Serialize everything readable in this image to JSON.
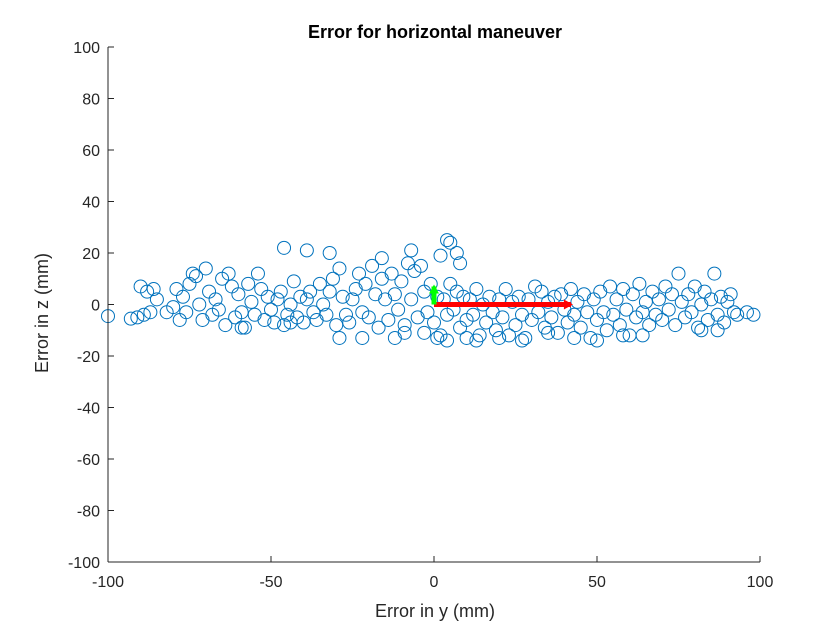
{
  "chart_data": {
    "type": "scatter",
    "title": "Error for horizontal maneuver",
    "xlabel": "Error in y (mm)",
    "ylabel": "Error in z (mm)",
    "xlim": [
      -100,
      100
    ],
    "ylim": [
      -100,
      100
    ],
    "xticks": [
      "-100",
      "-50",
      "0",
      "50",
      "100"
    ],
    "yticks": [
      "100",
      "80",
      "60",
      "40",
      "20",
      "0",
      "-20",
      "-40",
      "-60",
      "-80",
      "-100"
    ],
    "grid": false,
    "colors": {
      "markers": "#0072BD",
      "x_arrow": "#FF0000",
      "z_arrow": "#00FF00",
      "axis": "#262626"
    },
    "series": [
      {
        "marker": "circle-open",
        "points": [
          [
            -100,
            -4.5
          ],
          [
            -93,
            -5.5
          ],
          [
            -91,
            -5
          ],
          [
            -90,
            7
          ],
          [
            -89,
            -4
          ],
          [
            -88,
            5
          ],
          [
            -87,
            -3
          ],
          [
            -86,
            6
          ],
          [
            -85,
            2
          ],
          [
            -82,
            -3
          ],
          [
            -80,
            -1
          ],
          [
            -79,
            6
          ],
          [
            -78,
            -6
          ],
          [
            -77,
            3
          ],
          [
            -76,
            -3
          ],
          [
            -75,
            8
          ],
          [
            -74,
            12
          ],
          [
            -73,
            11
          ],
          [
            -72,
            0
          ],
          [
            -71,
            -6
          ],
          [
            -70,
            14
          ],
          [
            -69,
            5
          ],
          [
            -68,
            -4
          ],
          [
            -67,
            2
          ],
          [
            -66,
            -2
          ],
          [
            -65,
            10
          ],
          [
            -64,
            -8
          ],
          [
            -63,
            12
          ],
          [
            -62,
            7
          ],
          [
            -61,
            -5
          ],
          [
            -60,
            4
          ],
          [
            -59,
            -3
          ],
          [
            -58,
            -9
          ],
          [
            -57,
            8
          ],
          [
            -56,
            1
          ],
          [
            -55,
            -4
          ],
          [
            -54,
            12
          ],
          [
            -53,
            6
          ],
          [
            -52,
            -6
          ],
          [
            -51,
            3
          ],
          [
            -50,
            -2
          ],
          [
            -49,
            -7
          ],
          [
            -48,
            2
          ],
          [
            -47,
            5
          ],
          [
            -46,
            -8
          ],
          [
            -45,
            -4
          ],
          [
            -44,
            0
          ],
          [
            -43,
            9
          ],
          [
            -42,
            -5
          ],
          [
            -41,
            3
          ],
          [
            -40,
            -7
          ],
          [
            -39,
            2
          ],
          [
            -38,
            5
          ],
          [
            -37,
            -3
          ],
          [
            -36,
            -6
          ],
          [
            -35,
            8
          ],
          [
            -34,
            0
          ],
          [
            -33,
            -4
          ],
          [
            -32,
            5
          ],
          [
            -31,
            10
          ],
          [
            -30,
            -8
          ],
          [
            -29,
            14
          ],
          [
            -28,
            3
          ],
          [
            -27,
            -4
          ],
          [
            -26,
            -7
          ],
          [
            -25,
            2
          ],
          [
            -24,
            6
          ],
          [
            -23,
            12
          ],
          [
            -22,
            -3
          ],
          [
            -21,
            8
          ],
          [
            -20,
            -5
          ],
          [
            -19,
            15
          ],
          [
            -18,
            4
          ],
          [
            -17,
            -9
          ],
          [
            -16,
            10
          ],
          [
            -15,
            2
          ],
          [
            -14,
            -6
          ],
          [
            -13,
            12
          ],
          [
            -12,
            4
          ],
          [
            -11,
            -2
          ],
          [
            -10,
            9
          ],
          [
            -9,
            -8
          ],
          [
            -8,
            16
          ],
          [
            -7,
            2
          ],
          [
            -6,
            13
          ],
          [
            -5,
            -5
          ],
          [
            -4,
            15
          ],
          [
            -3,
            5
          ],
          [
            -2,
            -3
          ],
          [
            -1,
            8
          ],
          [
            0,
            -7
          ],
          [
            1,
            3
          ],
          [
            2,
            -12
          ],
          [
            3,
            2
          ],
          [
            4,
            -4
          ],
          [
            5,
            8
          ],
          [
            6,
            -2
          ],
          [
            7,
            5
          ],
          [
            8,
            -9
          ],
          [
            9,
            3
          ],
          [
            10,
            -6
          ],
          [
            11,
            2
          ],
          [
            12,
            -4
          ],
          [
            13,
            6
          ],
          [
            14,
            -12
          ],
          [
            15,
            0
          ],
          [
            16,
            -7
          ],
          [
            17,
            3
          ],
          [
            18,
            -3
          ],
          [
            19,
            -10
          ],
          [
            20,
            2
          ],
          [
            21,
            -5
          ],
          [
            22,
            6
          ],
          [
            23,
            -12
          ],
          [
            24,
            1
          ],
          [
            25,
            -8
          ],
          [
            26,
            3
          ],
          [
            27,
            -4
          ],
          [
            28,
            -13
          ],
          [
            29,
            2
          ],
          [
            30,
            -6
          ],
          [
            31,
            7
          ],
          [
            32,
            -3
          ],
          [
            33,
            5
          ],
          [
            34,
            -9
          ],
          [
            35,
            1
          ],
          [
            36,
            -5
          ],
          [
            37,
            3
          ],
          [
            38,
            -11
          ],
          [
            39,
            4
          ],
          [
            40,
            -2
          ],
          [
            41,
            -7
          ],
          [
            42,
            6
          ],
          [
            43,
            -4
          ],
          [
            44,
            1
          ],
          [
            45,
            -9
          ],
          [
            46,
            4
          ],
          [
            47,
            -3
          ],
          [
            48,
            -13
          ],
          [
            49,
            2
          ],
          [
            50,
            -6
          ],
          [
            51,
            5
          ],
          [
            52,
            -3
          ],
          [
            53,
            -10
          ],
          [
            54,
            7
          ],
          [
            55,
            -4
          ],
          [
            56,
            2
          ],
          [
            57,
            -8
          ],
          [
            58,
            6
          ],
          [
            59,
            -2
          ],
          [
            60,
            -12
          ],
          [
            61,
            4
          ],
          [
            62,
            -5
          ],
          [
            63,
            8
          ],
          [
            64,
            -3
          ],
          [
            65,
            1
          ],
          [
            66,
            -8
          ],
          [
            67,
            5
          ],
          [
            68,
            -4
          ],
          [
            69,
            2
          ],
          [
            70,
            -6
          ],
          [
            71,
            7
          ],
          [
            72,
            -2
          ],
          [
            73,
            4
          ],
          [
            74,
            -8
          ],
          [
            75,
            12
          ],
          [
            76,
            1
          ],
          [
            77,
            -5
          ],
          [
            78,
            4
          ],
          [
            79,
            -3
          ],
          [
            80,
            7
          ],
          [
            81,
            -9
          ],
          [
            82,
            0
          ],
          [
            83,
            5
          ],
          [
            84,
            -6
          ],
          [
            85,
            2
          ],
          [
            86,
            12
          ],
          [
            87,
            -4
          ],
          [
            88,
            3
          ],
          [
            89,
            -7
          ],
          [
            90,
            1
          ],
          [
            91,
            4
          ],
          [
            92,
            -3
          ],
          [
            96,
            -3
          ],
          [
            98,
            -4
          ],
          [
            -46,
            22
          ],
          [
            -39,
            21
          ],
          [
            -32,
            20
          ],
          [
            -16,
            18
          ],
          [
            -7,
            21
          ],
          [
            2,
            19
          ],
          [
            4,
            25
          ],
          [
            5,
            24
          ],
          [
            7,
            20
          ],
          [
            8,
            16
          ],
          [
            -59,
            -9
          ],
          [
            -44,
            -7
          ],
          [
            -29,
            -13
          ],
          [
            -22,
            -13
          ],
          [
            -12,
            -13
          ],
          [
            -9,
            -11
          ],
          [
            -3,
            -11
          ],
          [
            1,
            -13
          ],
          [
            4,
            -14
          ],
          [
            10,
            -13
          ],
          [
            13,
            -14
          ],
          [
            20,
            -13
          ],
          [
            27,
            -14
          ],
          [
            35,
            -11
          ],
          [
            43,
            -13
          ],
          [
            50,
            -14
          ],
          [
            58,
            -12
          ],
          [
            64,
            -12
          ],
          [
            82,
            -10
          ],
          [
            87,
            -10
          ],
          [
            93,
            -4
          ]
        ]
      }
    ],
    "annotations": [
      {
        "type": "arrow",
        "color": "#FF0000",
        "from": [
          0,
          0
        ],
        "to": [
          42,
          0
        ]
      },
      {
        "type": "arrow",
        "color": "#00FF00",
        "from": [
          0,
          0
        ],
        "to": [
          0,
          7
        ]
      }
    ]
  }
}
